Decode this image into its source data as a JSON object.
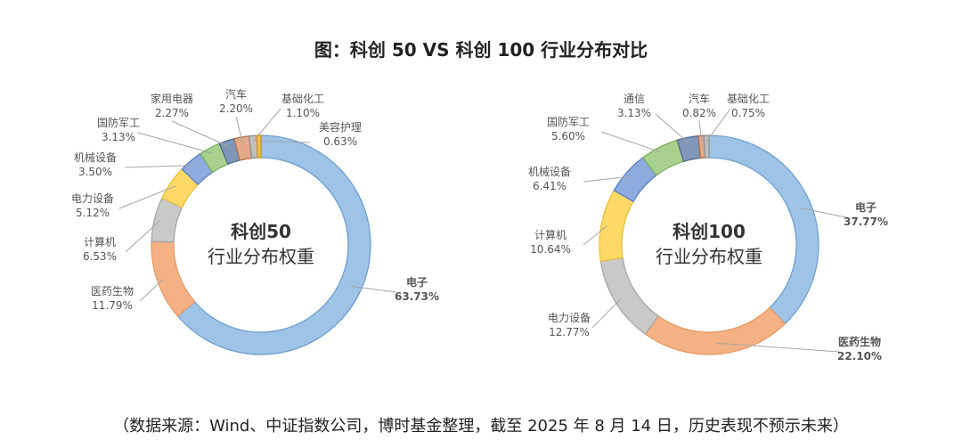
{
  "title": "图：科创 50 VS  科创 100 行业分布对比",
  "source": "（数据来源：Wind、中证指数公司，博时基金整理，截至 2025 年 8 月 14 日，历史表现不预示未来）",
  "chart_data": [
    {
      "type": "pie",
      "style": "donut",
      "center_title": "科创50",
      "center_subtitle": "行业分布权重",
      "slices": [
        {
          "label": "电子",
          "value": 63.73,
          "display": "63.73%",
          "color": "#9dc3e6",
          "stroke": "#6f9fcf",
          "highlight": true,
          "highlight_color": "#2e75b6"
        },
        {
          "label": "医药生物",
          "value": 11.79,
          "display": "11.79%",
          "color": "#f4b183",
          "stroke": "#e69a66",
          "highlight": false
        },
        {
          "label": "计算机",
          "value": 6.53,
          "display": "6.53%",
          "color": "#c9c9c9",
          "stroke": "#a6a6a6",
          "highlight": false
        },
        {
          "label": "电力设备",
          "value": 5.12,
          "display": "5.12%",
          "color": "#ffd966",
          "stroke": "#e8c13b",
          "highlight": false
        },
        {
          "label": "机械设备",
          "value": 3.5,
          "display": "3.50%",
          "color": "#8faadc",
          "stroke": "#5a7fc2",
          "highlight": false
        },
        {
          "label": "国防军工",
          "value": 3.13,
          "display": "3.13%",
          "color": "#a9d18e",
          "stroke": "#7fb05f",
          "highlight": false
        },
        {
          "label": "家用电器",
          "value": 2.27,
          "display": "2.27%",
          "color": "#7f97b8",
          "stroke": "#4d6a91",
          "highlight": false
        },
        {
          "label": "汽车",
          "value": 2.2,
          "display": "2.20%",
          "color": "#e3a989",
          "stroke": "#b26d4c",
          "highlight": false
        },
        {
          "label": "基础化工",
          "value": 1.1,
          "display": "1.10%",
          "color": "#bfbfbf",
          "stroke": "#8f8f8f",
          "highlight": false
        },
        {
          "label": "美容护理",
          "value": 0.63,
          "display": "0.63%",
          "color": "#f2c04b",
          "stroke": "#c99a1c",
          "highlight": false
        }
      ]
    },
    {
      "type": "pie",
      "style": "donut",
      "center_title": "科创100",
      "center_subtitle": "行业分布权重",
      "slices": [
        {
          "label": "电子",
          "value": 37.77,
          "display": "37.77%",
          "color": "#9dc3e6",
          "stroke": "#6f9fcf",
          "highlight": true,
          "highlight_color": "#2e75b6"
        },
        {
          "label": "医药生物",
          "value": 22.1,
          "display": "22.10%",
          "color": "#f4b183",
          "stroke": "#e69a66",
          "highlight": true,
          "highlight_color": "#c55a11"
        },
        {
          "label": "电力设备",
          "value": 12.77,
          "display": "12.77%",
          "color": "#c9c9c9",
          "stroke": "#a6a6a6",
          "highlight": false
        },
        {
          "label": "计算机",
          "value": 10.64,
          "display": "10.64%",
          "color": "#ffd966",
          "stroke": "#e8c13b",
          "highlight": false
        },
        {
          "label": "机械设备",
          "value": 6.41,
          "display": "6.41%",
          "color": "#8faadc",
          "stroke": "#5a7fc2",
          "highlight": false
        },
        {
          "label": "国防军工",
          "value": 5.6,
          "display": "5.60%",
          "color": "#a9d18e",
          "stroke": "#7fb05f",
          "highlight": false
        },
        {
          "label": "通信",
          "value": 3.13,
          "display": "3.13%",
          "color": "#7f97b8",
          "stroke": "#4d6a91",
          "highlight": false
        },
        {
          "label": "汽车",
          "value": 0.82,
          "display": "0.82%",
          "color": "#e3a989",
          "stroke": "#b26d4c",
          "highlight": false
        },
        {
          "label": "基础化工",
          "value": 0.75,
          "display": "0.75%",
          "color": "#bfbfbf",
          "stroke": "#8f8f8f",
          "highlight": false
        }
      ]
    }
  ]
}
